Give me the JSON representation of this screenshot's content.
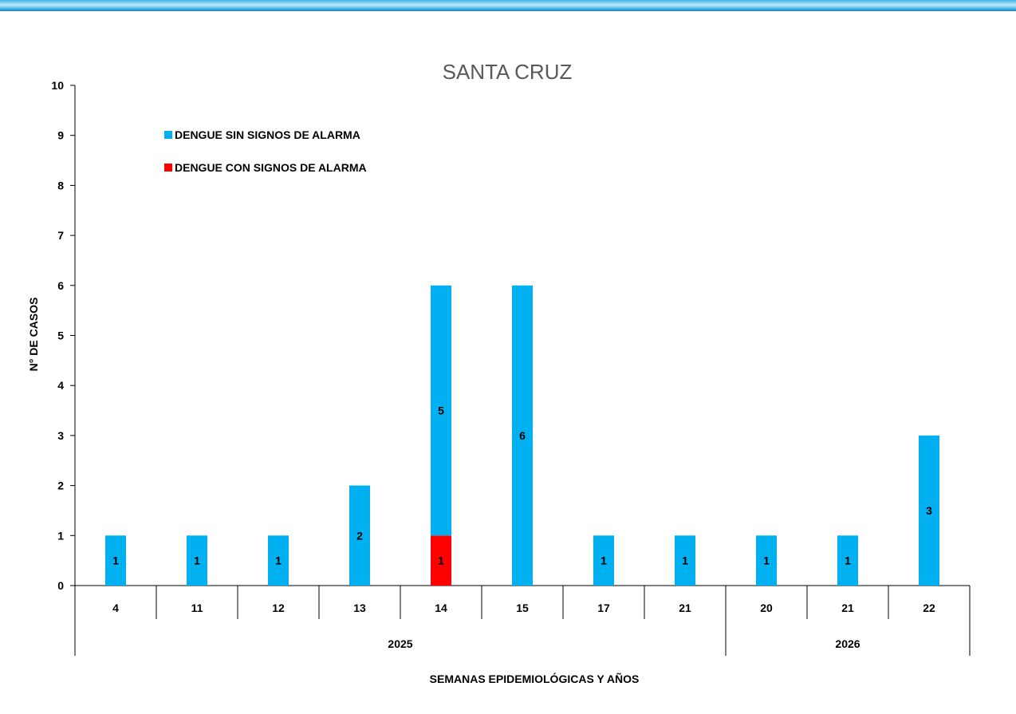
{
  "chart_data": {
    "type": "bar",
    "stacked": true,
    "title": "SANTA CRUZ",
    "xlabel": "SEMANAS EPIDEMIOLÓGICAS  Y AÑOS",
    "ylabel": "N°  DE CASOS",
    "ylim": [
      0,
      10
    ],
    "yticks": [
      "0",
      "1",
      "2",
      "3",
      "4",
      "5",
      "6",
      "7",
      "8",
      "9",
      "10"
    ],
    "categories": [
      "4",
      "11",
      "12",
      "13",
      "14",
      "15",
      "17",
      "21",
      "20",
      "21",
      "22"
    ],
    "groups": [
      {
        "label": "2025",
        "count": 8
      },
      {
        "label": "2026",
        "count": 3
      }
    ],
    "series": [
      {
        "name": "DENGUE CON SIGNOS DE ALARMA",
        "color": "#ff0000",
        "values": [
          0,
          0,
          0,
          0,
          1,
          0,
          0,
          0,
          0,
          0,
          0
        ]
      },
      {
        "name": "DENGUE SIN SIGNOS DE ALARMA",
        "color": "#00b0f0",
        "values": [
          1,
          1,
          1,
          2,
          5,
          6,
          1,
          1,
          1,
          1,
          3
        ]
      }
    ],
    "legend": [
      {
        "label": "DENGUE SIN SIGNOS DE ALARMA",
        "color": "#00b0f0"
      },
      {
        "label": "DENGUE CON SIGNOS DE ALARMA",
        "color": "#ff0000"
      }
    ],
    "legend_position": "top-left",
    "grid": false
  }
}
